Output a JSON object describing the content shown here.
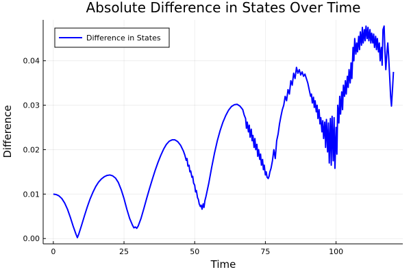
{
  "chart_data": {
    "type": "line",
    "title": "Absolute Difference in States Over Time",
    "xlabel": "Time",
    "ylabel": "Difference",
    "xlim": [
      -3.6,
      123.6
    ],
    "ylim": [
      -0.0012,
      0.0492
    ],
    "xticks": [
      0,
      25,
      50,
      75,
      100
    ],
    "xtick_labels": [
      "0",
      "25",
      "50",
      "75",
      "100"
    ],
    "yticks": [
      0.0,
      0.01,
      0.02,
      0.03,
      0.04
    ],
    "ytick_labels": [
      "0.00",
      "0.01",
      "0.02",
      "0.03",
      "0.04"
    ],
    "grid": true,
    "legend": {
      "position": "top-left",
      "entries": [
        "Difference in States"
      ]
    },
    "series": [
      {
        "name": "Difference in States",
        "color": "#0000ff",
        "points": [
          [
            0,
            0.01
          ],
          [
            1,
            0.0099
          ],
          [
            2,
            0.0096
          ],
          [
            3,
            0.009
          ],
          [
            4,
            0.008
          ],
          [
            5,
            0.0066
          ],
          [
            6,
            0.0048
          ],
          [
            7,
            0.0028
          ],
          [
            8,
            0.001
          ],
          [
            8.5,
            0.0002
          ],
          [
            9,
            0.001
          ],
          [
            10,
            0.003
          ],
          [
            11,
            0.0051
          ],
          [
            12,
            0.0071
          ],
          [
            13,
            0.0089
          ],
          [
            14,
            0.0104
          ],
          [
            15,
            0.0117
          ],
          [
            16,
            0.0127
          ],
          [
            17,
            0.0134
          ],
          [
            18,
            0.0139
          ],
          [
            19,
            0.0142
          ],
          [
            20,
            0.0143
          ],
          [
            21,
            0.0141
          ],
          [
            22,
            0.0136
          ],
          [
            23,
            0.0126
          ],
          [
            24,
            0.011
          ],
          [
            25,
            0.009
          ],
          [
            26,
            0.0066
          ],
          [
            27,
            0.0045
          ],
          [
            28,
            0.003
          ],
          [
            28.5,
            0.0024
          ],
          [
            29,
            0.0026
          ],
          [
            29.5,
            0.0023
          ],
          [
            30,
            0.0028
          ],
          [
            31,
            0.0045
          ],
          [
            32,
            0.0067
          ],
          [
            33,
            0.009
          ],
          [
            34,
            0.0112
          ],
          [
            35,
            0.0133
          ],
          [
            36,
            0.0153
          ],
          [
            37,
            0.0171
          ],
          [
            38,
            0.0187
          ],
          [
            39,
            0.0201
          ],
          [
            40,
            0.0212
          ],
          [
            41,
            0.0219
          ],
          [
            42,
            0.0222
          ],
          [
            43,
            0.0222
          ],
          [
            44,
            0.0218
          ],
          [
            45,
            0.021
          ],
          [
            46,
            0.0197
          ],
          [
            46.5,
            0.0188
          ],
          [
            47,
            0.0176
          ],
          [
            47.3,
            0.018
          ],
          [
            47.6,
            0.0163
          ],
          [
            48,
            0.0165
          ],
          [
            48.3,
            0.015
          ],
          [
            48.6,
            0.0152
          ],
          [
            49,
            0.0138
          ],
          [
            49.3,
            0.014
          ],
          [
            49.6,
            0.0125
          ],
          [
            50,
            0.012
          ],
          [
            50.3,
            0.0105
          ],
          [
            50.6,
            0.0108
          ],
          [
            51,
            0.0092
          ],
          [
            51.3,
            0.0088
          ],
          [
            51.6,
            0.0078
          ],
          [
            52,
            0.0072
          ],
          [
            52.3,
            0.0075
          ],
          [
            52.6,
            0.0066
          ],
          [
            53,
            0.0078
          ],
          [
            53.3,
            0.007
          ],
          [
            53.6,
            0.0085
          ],
          [
            54,
            0.0095
          ],
          [
            55,
            0.0125
          ],
          [
            56,
            0.016
          ],
          [
            57,
            0.0192
          ],
          [
            58,
            0.022
          ],
          [
            59,
            0.0243
          ],
          [
            60,
            0.0262
          ],
          [
            61,
            0.0277
          ],
          [
            62,
            0.0289
          ],
          [
            63,
            0.0297
          ],
          [
            64,
            0.0301
          ],
          [
            65,
            0.0302
          ],
          [
            66,
            0.0298
          ],
          [
            67,
            0.029
          ],
          [
            67.5,
            0.0278
          ],
          [
            68,
            0.027
          ],
          [
            68.3,
            0.0248
          ],
          [
            68.6,
            0.0262
          ],
          [
            69,
            0.024
          ],
          [
            69.3,
            0.0255
          ],
          [
            69.6,
            0.0228
          ],
          [
            70,
            0.0246
          ],
          [
            70.3,
            0.022
          ],
          [
            70.6,
            0.0232
          ],
          [
            71,
            0.0205
          ],
          [
            71.3,
            0.0225
          ],
          [
            71.6,
            0.02
          ],
          [
            72,
            0.0212
          ],
          [
            72.3,
            0.0185
          ],
          [
            72.6,
            0.02
          ],
          [
            73,
            0.0178
          ],
          [
            73.3,
            0.019
          ],
          [
            73.6,
            0.0165
          ],
          [
            74,
            0.0178
          ],
          [
            74.3,
            0.0155
          ],
          [
            74.6,
            0.0165
          ],
          [
            75,
            0.0143
          ],
          [
            75.3,
            0.015
          ],
          [
            75.6,
            0.0138
          ],
          [
            76,
            0.0135
          ],
          [
            76.3,
            0.014
          ],
          [
            76.6,
            0.015
          ],
          [
            77,
            0.0158
          ],
          [
            77.5,
            0.0175
          ],
          [
            78,
            0.02
          ],
          [
            78.5,
            0.018
          ],
          [
            79,
            0.022
          ],
          [
            79.5,
            0.0235
          ],
          [
            80,
            0.0258
          ],
          [
            80.5,
            0.0275
          ],
          [
            81,
            0.029
          ],
          [
            81.5,
            0.03
          ],
          [
            82,
            0.032
          ],
          [
            82.5,
            0.031
          ],
          [
            83,
            0.0335
          ],
          [
            83.5,
            0.0325
          ],
          [
            84,
            0.0355
          ],
          [
            84.5,
            0.0345
          ],
          [
            85,
            0.0372
          ],
          [
            85.5,
            0.036
          ],
          [
            86,
            0.0385
          ],
          [
            86.5,
            0.0372
          ],
          [
            87,
            0.038
          ],
          [
            87.5,
            0.0368
          ],
          [
            88,
            0.0375
          ],
          [
            88.5,
            0.0365
          ],
          [
            89,
            0.037
          ],
          [
            89.5,
            0.036
          ],
          [
            90,
            0.035
          ],
          [
            90.5,
            0.0335
          ],
          [
            91,
            0.032
          ],
          [
            91.3,
            0.0325
          ],
          [
            91.6,
            0.0305
          ],
          [
            92,
            0.0318
          ],
          [
            92.3,
            0.0295
          ],
          [
            92.6,
            0.031
          ],
          [
            93,
            0.0285
          ],
          [
            93.3,
            0.03
          ],
          [
            93.6,
            0.027
          ],
          [
            94,
            0.029
          ],
          [
            94.3,
            0.0258
          ],
          [
            94.6,
            0.0272
          ],
          [
            95,
            0.024
          ],
          [
            95.3,
            0.0265
          ],
          [
            95.6,
            0.0225
          ],
          [
            96,
            0.0262
          ],
          [
            96.3,
            0.0205
          ],
          [
            96.6,
            0.0268
          ],
          [
            97,
            0.0195
          ],
          [
            97.3,
            0.026
          ],
          [
            97.6,
            0.017
          ],
          [
            98,
            0.027
          ],
          [
            98.3,
            0.0165
          ],
          [
            98.6,
            0.0275
          ],
          [
            99,
            0.0175
          ],
          [
            99.3,
            0.0272
          ],
          [
            99.6,
            0.0158
          ],
          [
            100,
            0.025
          ],
          [
            100.3,
            0.019
          ],
          [
            100.6,
            0.03
          ],
          [
            101,
            0.026
          ],
          [
            101.3,
            0.032
          ],
          [
            101.6,
            0.028
          ],
          [
            102,
            0.033
          ],
          [
            102.3,
            0.029
          ],
          [
            102.6,
            0.0345
          ],
          [
            103,
            0.032
          ],
          [
            103.3,
            0.0355
          ],
          [
            103.6,
            0.0325
          ],
          [
            104,
            0.0365
          ],
          [
            104.3,
            0.034
          ],
          [
            104.6,
            0.038
          ],
          [
            105,
            0.035
          ],
          [
            105.3,
            0.0395
          ],
          [
            105.6,
            0.036
          ],
          [
            106,
            0.043
          ],
          [
            106.3,
            0.04
          ],
          [
            106.6,
            0.045
          ],
          [
            107,
            0.0415
          ],
          [
            107.3,
            0.044
          ],
          [
            107.6,
            0.042
          ],
          [
            108,
            0.0455
          ],
          [
            108.3,
            0.0425
          ],
          [
            108.6,
            0.0465
          ],
          [
            109,
            0.0435
          ],
          [
            109.3,
            0.0475
          ],
          [
            109.6,
            0.044
          ],
          [
            110,
            0.047
          ],
          [
            110.3,
            0.0445
          ],
          [
            110.6,
            0.0478
          ],
          [
            111,
            0.045
          ],
          [
            111.3,
            0.0475
          ],
          [
            111.6,
            0.0445
          ],
          [
            112,
            0.047
          ],
          [
            112.3,
            0.044
          ],
          [
            112.6,
            0.0462
          ],
          [
            113,
            0.044
          ],
          [
            113.3,
            0.046
          ],
          [
            113.6,
            0.043
          ],
          [
            114,
            0.0455
          ],
          [
            114.3,
            0.0425
          ],
          [
            114.6,
            0.045
          ],
          [
            115,
            0.042
          ],
          [
            115.3,
            0.044
          ],
          [
            115.6,
            0.04
          ],
          [
            116,
            0.043
          ],
          [
            116.3,
            0.039
          ],
          [
            116.6,
            0.047
          ],
          [
            117,
            0.0478
          ],
          [
            117.3,
            0.042
          ],
          [
            117.6,
            0.038
          ],
          [
            118,
            0.042
          ],
          [
            118.3,
            0.044
          ],
          [
            118.6,
            0.041
          ],
          [
            119,
            0.036
          ],
          [
            119.3,
            0.032
          ],
          [
            119.6,
            0.0298
          ],
          [
            120,
            0.034
          ],
          [
            120.3,
            0.0375
          ]
        ]
      }
    ]
  }
}
